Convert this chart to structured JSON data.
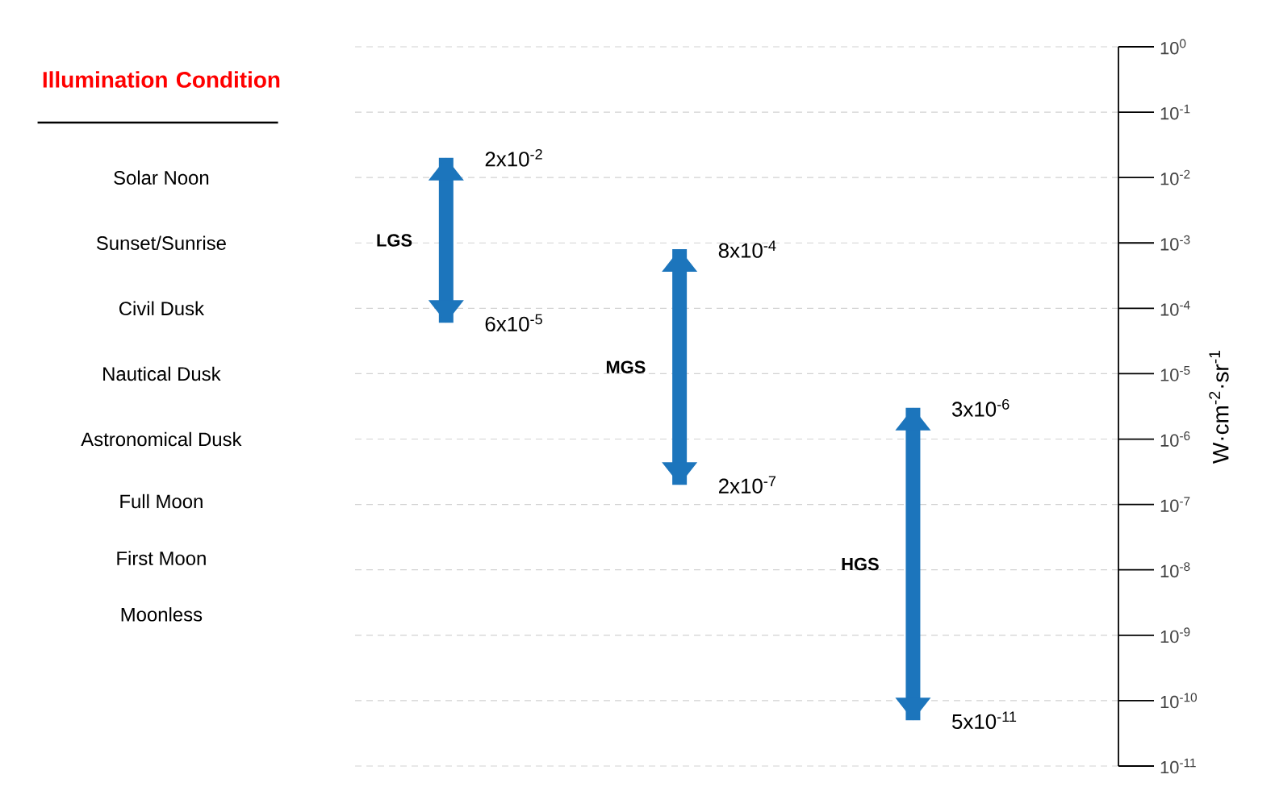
{
  "chart_data": {
    "type": "bar",
    "title": "Illumination Condition",
    "ylabel": "W·cm$^{-2}$·sr$^{-1}$",
    "categories": [
      null,
      null,
      null
    ],
    "series": [
      {
        "name": "LGS",
        "color": "#1c75bc",
        "base": [
          6e-05,
          null,
          null
        ],
        "values": [
          0.01994,
          null,
          null
        ]
      },
      {
        "name": "MGS",
        "color": "#1c75bc",
        "base": [
          null,
          2e-07,
          null
        ],
        "values": [
          null,
          0.0007998,
          null
        ]
      },
      {
        "name": "HGS",
        "color": "#1c75bc",
        "base": [
          null,
          null,
          5e-11
        ],
        "values": [
          null,
          null,
          2.99995e-06
        ]
      }
    ],
    "log": "y",
    "grid": "y",
    "ylim": [
      1e-11,
      1
    ],
    "yticks": [
      {
        "value": 1,
        "label": "10$^{0}$"
      },
      {
        "value": 0.1,
        "label": "10$^{-1}$"
      },
      {
        "value": 0.01,
        "label": "10$^{-2}$"
      },
      {
        "value": 0.001,
        "label": "10$^{-3}$"
      },
      {
        "value": 0.0001,
        "label": "10$^{-4}$"
      },
      {
        "value": 1e-05,
        "label": "10$^{-5}$"
      },
      {
        "value": 1e-06,
        "label": "10$^{-6}$"
      },
      {
        "value": 1e-07,
        "label": "10$^{-7}$"
      },
      {
        "value": 1e-08,
        "label": "10$^{-8}$"
      },
      {
        "value": 1e-09,
        "label": "10$^{-9}$"
      },
      {
        "value": 1e-10,
        "label": "10$^{-10}$"
      },
      {
        "value": 1e-11,
        "label": "10$^{-11}$"
      }
    ],
    "tick_labels": "y",
    "annotations": [
      "Solar Noon",
      "Sunset/Sunrise",
      "Civil Dusk",
      "Nautical Dusk",
      "Astronomical Dusk",
      "Full Moon",
      "First Moon",
      "Moonless",
      "2x10$^{-2}$",
      "6x10$^{-5}$",
      "8x10$^{-4}$",
      "2x10$^{-7}$",
      "3x10$^{-6}$",
      "5x10$^{-11}$"
    ]
  }
}
